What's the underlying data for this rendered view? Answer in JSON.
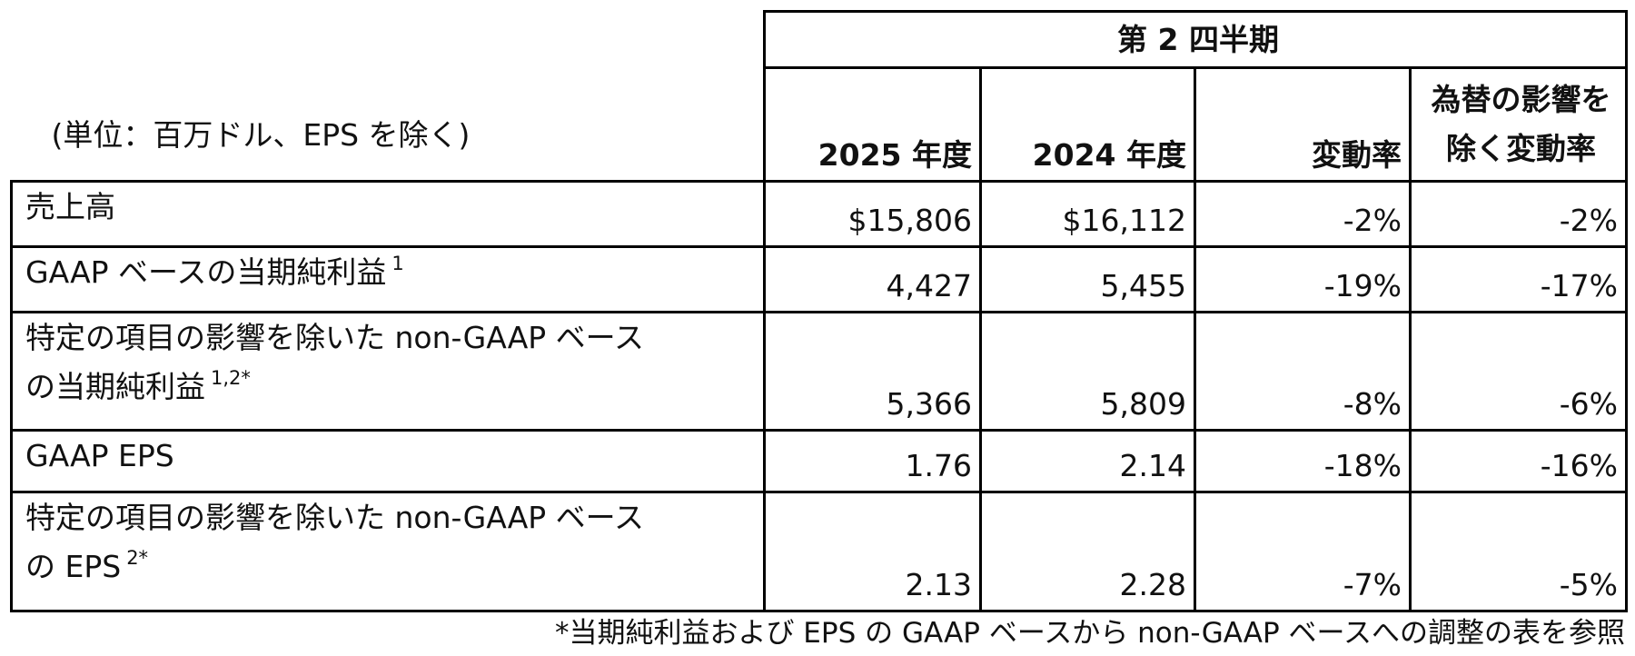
{
  "table": {
    "unit_label": "(単位：百万ドル、EPS を除く)",
    "period_header": "第 2 四半期",
    "columns": [
      "2025 年度",
      "2024 年度",
      "変動率"
    ],
    "fx_column": [
      "為替の影響を",
      "除く変動率"
    ],
    "rows": [
      {
        "label_lines": [
          "売上高"
        ],
        "footnote": "",
        "values": [
          "$15,806",
          "$16,112",
          "-2%",
          "-2%"
        ]
      },
      {
        "label_lines": [
          "GAAP ベースの当期純利益"
        ],
        "footnote": "1",
        "values": [
          "4,427",
          "5,455",
          "-19%",
          "-17%"
        ]
      },
      {
        "label_lines": [
          "特定の項目の影響を除いた non-GAAP ベース",
          "の当期純利益"
        ],
        "footnote": "1,2*",
        "values": [
          "5,366",
          "5,809",
          "-8%",
          "-6%"
        ]
      },
      {
        "label_lines": [
          "GAAP EPS"
        ],
        "footnote": "",
        "values": [
          "1.76",
          "2.14",
          "-18%",
          "-16%"
        ]
      },
      {
        "label_lines": [
          "特定の項目の影響を除いた non-GAAP ベース",
          "の EPS"
        ],
        "footnote": "2*",
        "values": [
          "2.13",
          "2.28",
          "-7%",
          "-5%"
        ]
      }
    ]
  },
  "footnote_text": "*当期純利益および EPS の GAAP ベースから non-GAAP ベースへの調整の表を参照"
}
